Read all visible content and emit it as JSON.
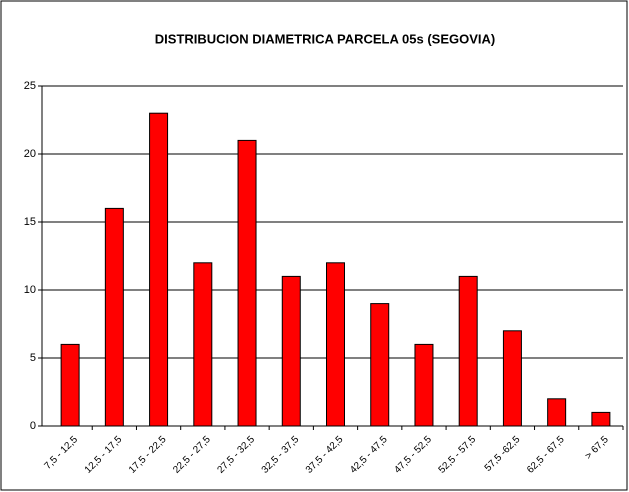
{
  "chart_data": {
    "type": "bar",
    "title": "DISTRIBUCION DIAMETRICA PARCELA 05s (SEGOVIA)",
    "categories": [
      "7,5 - 12,5",
      "12,5 - 17,5",
      "17,5 - 22,5",
      "22,5 - 27,5",
      "27,5 - 32,5",
      "32,5 - 37,5",
      "37,5 - 42,5",
      "42,5 - 47,5",
      "47,5 - 52,5",
      "52,5 - 57,5",
      "57,5 -62,5",
      "62,5 - 67,5",
      "> 67,5"
    ],
    "values": [
      6,
      16,
      23,
      12,
      21,
      11,
      12,
      9,
      6,
      11,
      7,
      2,
      1
    ],
    "color": "#ff0000",
    "ylim": [
      0,
      25
    ],
    "yticks": [
      0,
      5,
      10,
      15,
      20,
      25
    ],
    "grid": true
  }
}
